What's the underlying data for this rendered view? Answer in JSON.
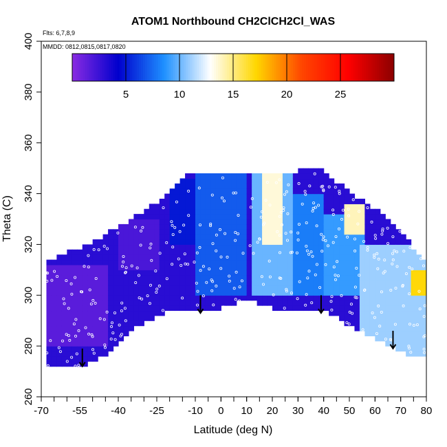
{
  "chart_data": {
    "type": "heatmap",
    "title": "ATOM1 Northbound CH2ClCH2Cl_WAS",
    "flights_label": "Flts: 6,7,8,9",
    "dates_label": "MMDD: 0812,0815,0817,0820",
    "xlabel": "Latitude (deg N)",
    "ylabel": "Theta (C)",
    "xlim": [
      -70,
      80
    ],
    "ylim": [
      260,
      400
    ],
    "x_ticks": [
      "-70",
      "-55",
      "-40",
      "-25",
      "-10",
      "0",
      "10",
      "20",
      "30",
      "40",
      "50",
      "60",
      "70",
      "80"
    ],
    "x_tick_values": [
      -70,
      -55,
      -40,
      -25,
      -10,
      0,
      10,
      20,
      30,
      40,
      50,
      60,
      70,
      80
    ],
    "y_ticks": [
      "260",
      "280",
      "300",
      "320",
      "340",
      "360",
      "380",
      "400"
    ],
    "y_tick_values": [
      260,
      280,
      300,
      320,
      340,
      360,
      380,
      400
    ],
    "colorbar": {
      "range": [
        0,
        30
      ],
      "ticks": [
        "5",
        "10",
        "15",
        "20",
        "25"
      ],
      "tick_values": [
        5,
        10,
        15,
        20,
        25
      ],
      "colors": [
        "#8a2be2",
        "#0000cd",
        "#1e90ff",
        "#ffffff",
        "#ffd700",
        "#ff4500",
        "#ff0000",
        "#8b0000"
      ]
    },
    "lower_boundary": [
      [
        -68,
        272
      ],
      [
        -55,
        272
      ],
      [
        -45,
        277
      ],
      [
        -35,
        287
      ],
      [
        -25,
        292
      ],
      [
        -15,
        295
      ],
      [
        0,
        295
      ],
      [
        10,
        298
      ],
      [
        20,
        295
      ],
      [
        30,
        293
      ],
      [
        40,
        295
      ],
      [
        50,
        288
      ],
      [
        60,
        283
      ],
      [
        70,
        278
      ],
      [
        75,
        276
      ],
      [
        80,
        276
      ]
    ],
    "upper_boundary": [
      [
        -68,
        312
      ],
      [
        -60,
        316
      ],
      [
        -50,
        320
      ],
      [
        -40,
        326
      ],
      [
        -30,
        332
      ],
      [
        -20,
        340
      ],
      [
        -12,
        347
      ],
      [
        0,
        347
      ],
      [
        20,
        347
      ],
      [
        38,
        349
      ],
      [
        50,
        340
      ],
      [
        60,
        333
      ],
      [
        70,
        325
      ],
      [
        75,
        318
      ],
      [
        80,
        312
      ]
    ],
    "regions": [
      {
        "x": [
          -68,
          80
        ],
        "y": [
          272,
          349
        ],
        "value": 3
      },
      {
        "x": [
          -68,
          -45
        ],
        "y": [
          280,
          312
        ],
        "value": 1.5
      },
      {
        "x": [
          -10,
          10
        ],
        "y": [
          300,
          347
        ],
        "value": 7
      },
      {
        "x": [
          12,
          28
        ],
        "y": [
          300,
          347
        ],
        "value": 10
      },
      {
        "x": [
          16,
          24
        ],
        "y": [
          320,
          347
        ],
        "value": 13.5
      },
      {
        "x": [
          28,
          40
        ],
        "y": [
          300,
          340
        ],
        "value": 8
      },
      {
        "x": [
          40,
          55
        ],
        "y": [
          300,
          332
        ],
        "value": 9
      },
      {
        "x": [
          48,
          55
        ],
        "y": [
          325,
          335
        ],
        "value": 14
      },
      {
        "x": [
          55,
          80
        ],
        "y": [
          276,
          320
        ],
        "value": 11
      },
      {
        "x": [
          75,
          80
        ],
        "y": [
          300,
          310
        ],
        "value": 17
      },
      {
        "x": [
          -20,
          -10
        ],
        "y": [
          320,
          345
        ],
        "value": 5
      },
      {
        "x": [
          -40,
          -25
        ],
        "y": [
          310,
          330
        ],
        "value": 2
      }
    ],
    "arrows": [
      {
        "x": -54,
        "y_top": 279,
        "y_bottom": 272
      },
      {
        "x": -8,
        "y_top": 300,
        "y_bottom": 293
      },
      {
        "x": 39,
        "y_top": 300,
        "y_bottom": 293
      },
      {
        "x": 67,
        "y_top": 286,
        "y_bottom": 279
      }
    ]
  }
}
